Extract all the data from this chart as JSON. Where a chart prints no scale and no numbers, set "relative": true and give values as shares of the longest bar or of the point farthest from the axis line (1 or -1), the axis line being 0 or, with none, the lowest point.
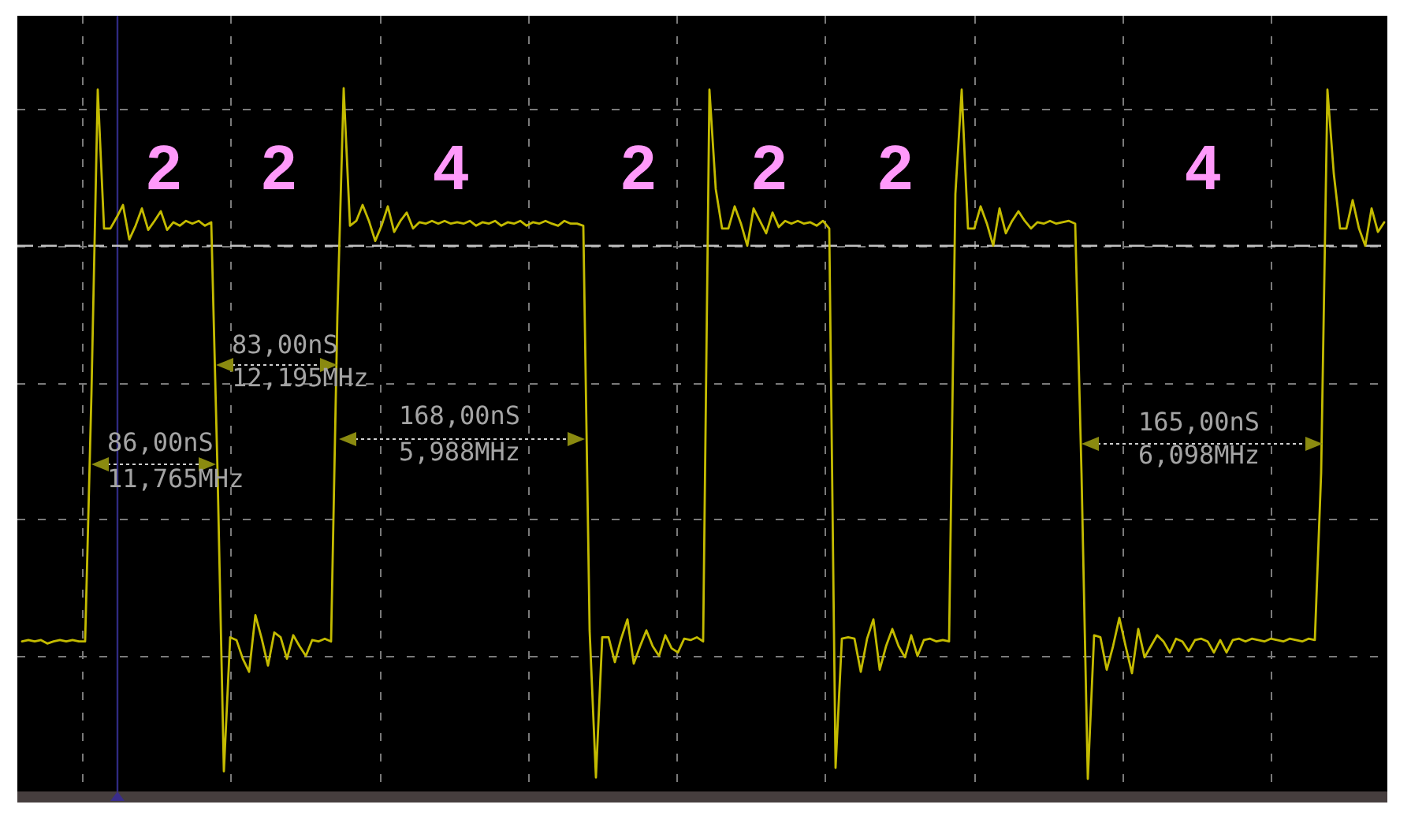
{
  "chart_data": {
    "type": "line",
    "relative": true,
    "grid": true,
    "categories": [
      null,
      null,
      null,
      null,
      null,
      null,
      null,
      null,
      null,
      null,
      null,
      null,
      null,
      null,
      null,
      null,
      null,
      null,
      null,
      null,
      null,
      null,
      null,
      null,
      null,
      null,
      null,
      null,
      null,
      null,
      null,
      null,
      null,
      null,
      null,
      null,
      null,
      null,
      null,
      null,
      null,
      null,
      null,
      null,
      null,
      null,
      null,
      null,
      null,
      null,
      null,
      null,
      null,
      null,
      null,
      null,
      null,
      null,
      null,
      null,
      null,
      null,
      null,
      null,
      null,
      null,
      null,
      null,
      null,
      null,
      null,
      null,
      null,
      null,
      null,
      null,
      null,
      null,
      null,
      null,
      null,
      null,
      null,
      null,
      null,
      null,
      null,
      null,
      null,
      null,
      null,
      null,
      null,
      null,
      null,
      null,
      null,
      null,
      null,
      null,
      null,
      null,
      null,
      null,
      null,
      null,
      null,
      null,
      null,
      null,
      null,
      null,
      null,
      null,
      null,
      null,
      null,
      null,
      null,
      null,
      null,
      null,
      null,
      null,
      null,
      null,
      null,
      null,
      null,
      null,
      null,
      null,
      null,
      null,
      null,
      null,
      null,
      null,
      null,
      null,
      null,
      null,
      null,
      null,
      null,
      null,
      null,
      null,
      null,
      null,
      null,
      null,
      null,
      null,
      null,
      null,
      null,
      null,
      null,
      null,
      null,
      null,
      null,
      null,
      null,
      null,
      null,
      null,
      null,
      null,
      null,
      null,
      null,
      null,
      null,
      null,
      null,
      null,
      null,
      null,
      null,
      null,
      null,
      null,
      null,
      null,
      null,
      null,
      null,
      null,
      null,
      null,
      null,
      null,
      null,
      null,
      null,
      null,
      null,
      null,
      null,
      null,
      null,
      null,
      null,
      null,
      null,
      null,
      null,
      null,
      null,
      null,
      null,
      null,
      null,
      null,
      null
    ],
    "color": "#c4bb00",
    "values": [
      0.199,
      0.201,
      0.199,
      0.201,
      0.196,
      0.199,
      0.201,
      0.199,
      0.201,
      0.199,
      0.199,
      0.557,
      0.998,
      0.797,
      0.797,
      0.813,
      0.831,
      0.781,
      0.801,
      0.826,
      0.795,
      0.808,
      0.822,
      0.795,
      0.806,
      0.801,
      0.808,
      0.804,
      0.808,
      0.801,
      0.806,
      0.443,
      0.011,
      0.205,
      0.201,
      0.174,
      0.155,
      0.237,
      0.203,
      0.164,
      0.212,
      0.205,
      0.174,
      0.208,
      0.192,
      0.178,
      0.201,
      0.199,
      0.203,
      0.199,
      0.671,
      1,
      0.801,
      0.808,
      0.831,
      0.808,
      0.779,
      0.801,
      0.829,
      0.792,
      0.808,
      0.82,
      0.797,
      0.806,
      0.804,
      0.808,
      0.804,
      0.808,
      0.804,
      0.806,
      0.804,
      0.808,
      0.801,
      0.806,
      0.804,
      0.808,
      0.801,
      0.806,
      0.804,
      0.808,
      0.801,
      0.806,
      0.804,
      0.808,
      0.804,
      0.801,
      0.808,
      0.804,
      0.804,
      0.801,
      0.215,
      0.002,
      0.205,
      0.205,
      0.169,
      0.203,
      0.231,
      0.167,
      0.192,
      0.215,
      0.192,
      0.178,
      0.208,
      0.189,
      0.183,
      0.203,
      0.201,
      0.205,
      0.199,
      0.998,
      0.854,
      0.797,
      0.797,
      0.829,
      0.804,
      0.772,
      0.826,
      0.808,
      0.79,
      0.82,
      0.799,
      0.808,
      0.804,
      0.808,
      0.804,
      0.806,
      0.801,
      0.808,
      0.797,
      0.016,
      0.203,
      0.205,
      0.203,
      0.155,
      0.203,
      0.231,
      0.158,
      0.192,
      0.217,
      0.192,
      0.176,
      0.208,
      0.178,
      0.201,
      0.203,
      0.199,
      0.201,
      0.199,
      0.847,
      0.998,
      0.797,
      0.797,
      0.829,
      0.804,
      0.772,
      0.826,
      0.79,
      0.808,
      0.822,
      0.808,
      0.797,
      0.806,
      0.804,
      0.808,
      0.804,
      0.806,
      0.808,
      0.804,
      0.443,
      0,
      0.208,
      0.205,
      0.158,
      0.192,
      0.233,
      0.192,
      0.153,
      0.217,
      0.176,
      0.192,
      0.208,
      0.199,
      0.183,
      0.203,
      0.199,
      0.185,
      0.201,
      0.203,
      0.199,
      0.183,
      0.201,
      0.183,
      0.201,
      0.203,
      0.199,
      0.203,
      0.201,
      0.199,
      0.203,
      0.201,
      0.199,
      0.203,
      0.201,
      0.199,
      0.203,
      0.201,
      0.443,
      0.998,
      0.877,
      0.797,
      0.797,
      0.838,
      0.797,
      0.772,
      0.826,
      0.792,
      0.806
    ],
    "ref_lines": [
      {
        "axis": "y",
        "value": 0.772,
        "color": "#c0c0c0",
        "line_style": "dashed"
      }
    ],
    "annotations": [
      "2",
      "2",
      "4",
      "2",
      "2",
      "2",
      "4",
      "86,00nS",
      "11,765MHz",
      "83,00nS",
      "12,195MHz",
      "168,00nS",
      "5,988MHz",
      "165,00nS",
      "6,098MHz"
    ]
  }
}
